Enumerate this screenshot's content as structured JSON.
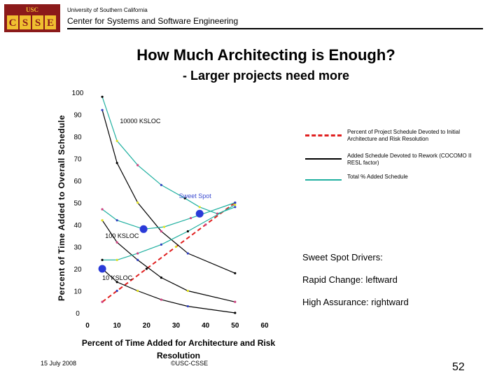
{
  "header": {
    "logo_top": "USC",
    "logo_letters": [
      "C",
      "S",
      "S",
      "E"
    ],
    "university": "University of Southern California",
    "center": "Center for Systems and Software Engineering"
  },
  "slide": {
    "title": "How Much Architecting is Enough?",
    "subtitle": "- Larger projects need more"
  },
  "chart_data": {
    "type": "line",
    "xlabel": "Percent of Time Added for Architecture and Risk Resolution",
    "ylabel": "Percent of Time Added to Overall Schedule",
    "xlim": [
      0,
      60
    ],
    "ylim": [
      0,
      100
    ],
    "x_ticks": [
      0,
      10,
      20,
      30,
      40,
      50,
      60
    ],
    "y_ticks": [
      0,
      10,
      20,
      30,
      40,
      50,
      60,
      70,
      80,
      90,
      100
    ],
    "grid": false,
    "legend_position": "right",
    "legend": [
      {
        "label": "Percent of Project Schedule Devoted to Initial Architecture and Risk Resolution",
        "color": "#e02020",
        "style": "dashed"
      },
      {
        "label": "Added Schedule Devoted to Rework (COCOMO II RESL factor)",
        "color": "#000000",
        "style": "solid"
      },
      {
        "label": "Total % Added Schedule",
        "color": "#20b0a0",
        "style": "solid"
      }
    ],
    "series": [
      {
        "name": "Architecture",
        "color": "#e02020",
        "style": "dashed",
        "x": [
          5,
          10,
          20,
          30,
          40,
          50
        ],
        "y": [
          5,
          10,
          20,
          30,
          40,
          50
        ]
      },
      {
        "name": "10000 KSLOC rework",
        "color": "#000000",
        "x": [
          5,
          10,
          17,
          25,
          34,
          50
        ],
        "y": [
          92,
          68,
          50,
          37,
          27,
          18
        ]
      },
      {
        "name": "10000 KSLOC total",
        "color": "#20b0a0",
        "x": [
          5,
          10,
          17,
          25,
          33,
          38,
          44,
          50
        ],
        "y": [
          98,
          78,
          67,
          58,
          52,
          48,
          45,
          48
        ]
      },
      {
        "name": "100 KSLOC rework",
        "color": "#000000",
        "x": [
          5,
          10,
          17,
          25,
          34,
          50
        ],
        "y": [
          42,
          32,
          24,
          16,
          10,
          5
        ]
      },
      {
        "name": "100 KSLOC total",
        "color": "#20b0a0",
        "x": [
          5,
          10,
          19,
          26,
          35,
          50
        ],
        "y": [
          47,
          42,
          38,
          39,
          43,
          50
        ]
      },
      {
        "name": "10 KSLOC rework",
        "color": "#000000",
        "x": [
          5,
          10,
          17,
          25,
          34,
          50
        ],
        "y": [
          20,
          14,
          10,
          6,
          3,
          0
        ]
      },
      {
        "name": "10 KSLOC total",
        "color": "#20b0a0",
        "x": [
          5,
          10,
          17,
          25,
          34,
          50
        ],
        "y": [
          24,
          24,
          27,
          31,
          37,
          49
        ]
      }
    ],
    "sweet_spots": [
      {
        "x": 38,
        "y": 45
      },
      {
        "x": 19,
        "y": 38
      },
      {
        "x": 5,
        "y": 20
      }
    ],
    "annotations": [
      {
        "text": "10000 KSLOC",
        "x": 11,
        "y": 86
      },
      {
        "text": "Sweet Spot",
        "x": 31,
        "y": 52,
        "color": "#3a4ad0"
      },
      {
        "text": "100 KSLOC",
        "x": 6,
        "y": 34
      },
      {
        "text": "10 KSLOC",
        "x": 5,
        "y": 15
      }
    ]
  },
  "drivers": {
    "title": "Sweet Spot Drivers:",
    "line1": "Rapid Change: leftward",
    "line2": "High Assurance: rightward"
  },
  "footer": {
    "date": "15 July 2008",
    "copyright": "©USC-CSSE",
    "page": "52"
  }
}
